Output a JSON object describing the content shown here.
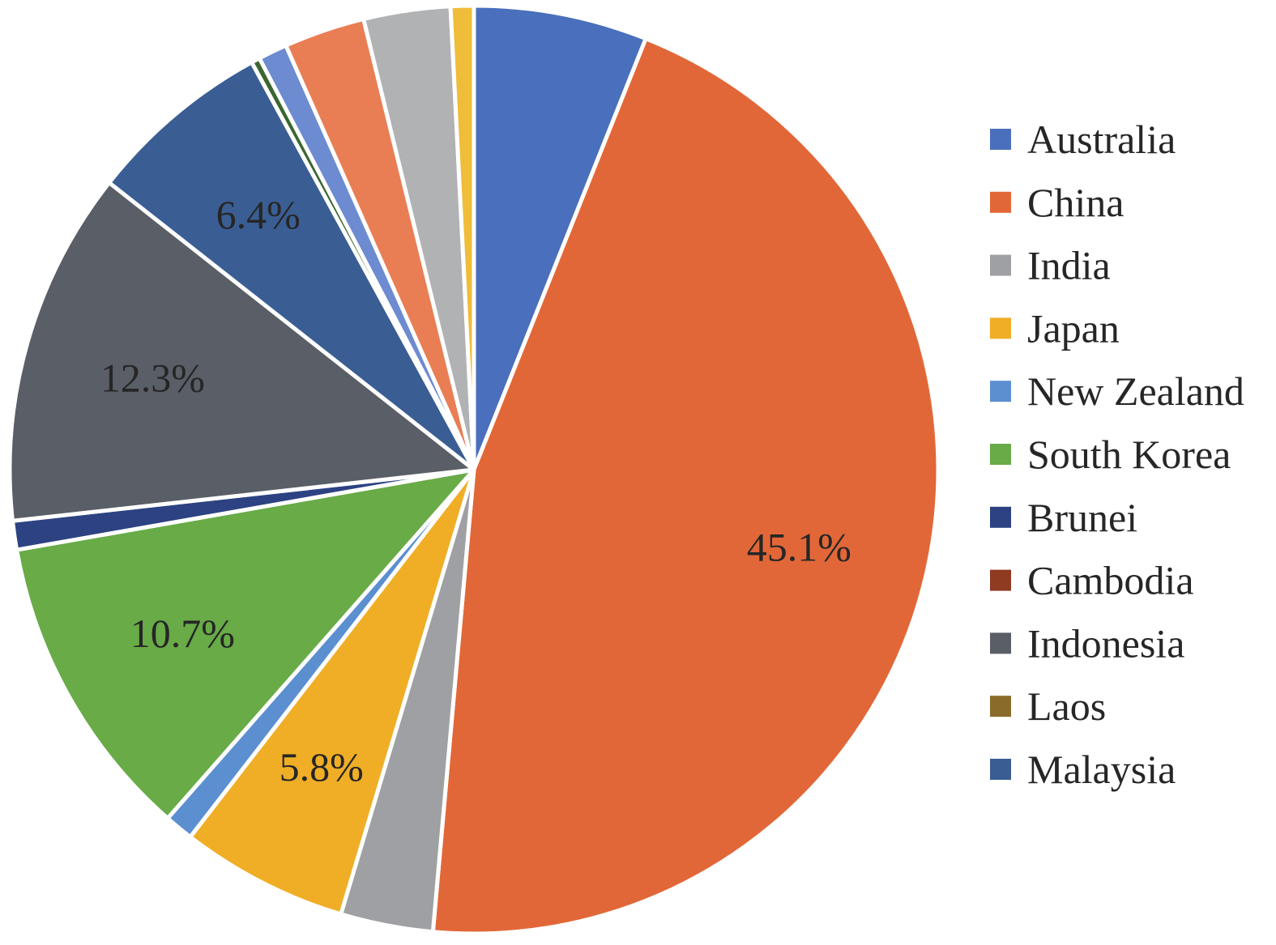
{
  "chart_data": {
    "type": "pie",
    "start_angle_deg": 0,
    "direction": "clockwise",
    "slices": [
      {
        "name": "Australia",
        "value": 6.0,
        "color": "#4a6fbc",
        "label": ""
      },
      {
        "name": "China",
        "value": 45.1,
        "color": "#e26738",
        "label": "45.1%"
      },
      {
        "name": "India",
        "value": 3.2,
        "color": "#9fa0a3",
        "label": ""
      },
      {
        "name": "Japan",
        "value": 5.8,
        "color": "#f0ae26",
        "label": "5.8%"
      },
      {
        "name": "New Zealand",
        "value": 1.0,
        "color": "#5b8fd0",
        "label": ""
      },
      {
        "name": "South Korea",
        "value": 10.7,
        "color": "#68ab47",
        "label": "10.7%"
      },
      {
        "name": "Brunei",
        "value": 1.0,
        "color": "#2d4282",
        "label": ""
      },
      {
        "name": "Cambodia",
        "value": 0.0,
        "color": "#8e3b22",
        "label": ""
      },
      {
        "name": "Indonesia",
        "value": 12.3,
        "color": "#5a5e66",
        "label": "12.3%"
      },
      {
        "name": "Laos",
        "value": 0.0,
        "color": "#8a6b2a",
        "label": ""
      },
      {
        "name": "Malaysia",
        "value": 6.4,
        "color": "#3a5e93",
        "label": "6.4%"
      },
      {
        "name": "",
        "value": 0.3,
        "color": "#3b6631",
        "label": ""
      },
      {
        "name": "",
        "value": 1.0,
        "color": "#6d8bd0",
        "label": ""
      },
      {
        "name": "",
        "value": 2.8,
        "color": "#e97e55",
        "label": ""
      },
      {
        "name": "",
        "value": 3.0,
        "color": "#b1b2b4",
        "label": ""
      },
      {
        "name": "",
        "value": 0.8,
        "color": "#efbd3a",
        "label": ""
      }
    ],
    "legend": {
      "position": "right",
      "entries": [
        {
          "label": "Australia",
          "color": "#4a6fbc"
        },
        {
          "label": "China",
          "color": "#e26738"
        },
        {
          "label": "India",
          "color": "#9fa0a3"
        },
        {
          "label": "Japan",
          "color": "#f0ae26"
        },
        {
          "label": "New Zealand",
          "color": "#5b8fd0"
        },
        {
          "label": "South Korea",
          "color": "#68ab47"
        },
        {
          "label": "Brunei",
          "color": "#2d4282"
        },
        {
          "label": "Cambodia",
          "color": "#8e3b22"
        },
        {
          "label": "Indonesia",
          "color": "#5a5e66"
        },
        {
          "label": "Laos",
          "color": "#8a6b2a"
        },
        {
          "label": "Malaysia",
          "color": "#3a5e93"
        }
      ]
    }
  }
}
